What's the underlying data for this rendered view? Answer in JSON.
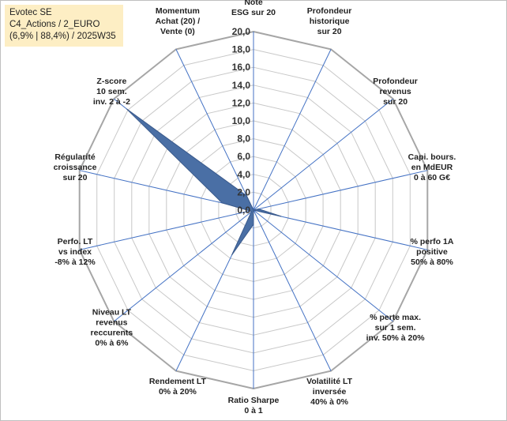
{
  "info": {
    "line1": "Evotec SE",
    "line2": "C4_Actions / 2_EURO",
    "line3": "(6,9% | 88,4%) / 2025W35"
  },
  "colors": {
    "series_fill": "#4a6fa5",
    "series_stroke": "#3a5a8c",
    "spokes": "#4472c4",
    "grid": "#c8c8c8",
    "outer_ring": "#a6a6a6"
  },
  "chart_data": {
    "type": "radar",
    "rmin": 0,
    "rmax": 20,
    "tick_step": 2,
    "tick_labels": [
      "0,0",
      "2,0",
      "4,0",
      "6,0",
      "8,0",
      "10,0",
      "12,0",
      "14,0",
      "16,0",
      "18,0",
      "20,0"
    ],
    "categories": [
      [
        "Note",
        "ESG sur 20"
      ],
      [
        "Profondeur",
        "historique",
        "sur 20"
      ],
      [
        "Profondeur",
        "revenus",
        "sur 20"
      ],
      [
        "Capi. bours.",
        "en MdEUR",
        "0 à 60 G€"
      ],
      [
        "% perfo 1A",
        "positive",
        "50% à 80%"
      ],
      [
        "% perte max.",
        "sur 1 sem.",
        "inv. 50% à 20%"
      ],
      [
        "Volatilité LT",
        "inversée",
        "40% à 0%"
      ],
      [
        "Ratio Sharpe",
        "0 à 1"
      ],
      [
        "Rendement LT",
        "0% à 20%"
      ],
      [
        "Niveau LT",
        "revenus",
        "reccurents",
        "0% à 6%"
      ],
      [
        "Perfo. LT",
        "vs index",
        "-8% à 12%"
      ],
      [
        "Régularité",
        "croissance",
        "sur 20"
      ],
      [
        "Z-score",
        "10 sem.",
        "inv. 2 à -2"
      ],
      [
        "Momentum",
        "Achat (20) /",
        "Vente (0)"
      ]
    ],
    "series": [
      {
        "values": [
          0,
          0,
          0,
          0.6,
          3.2,
          0,
          0,
          1.6,
          5.6,
          0.3,
          0.4,
          3.6,
          18.2,
          1.8
        ]
      }
    ]
  }
}
